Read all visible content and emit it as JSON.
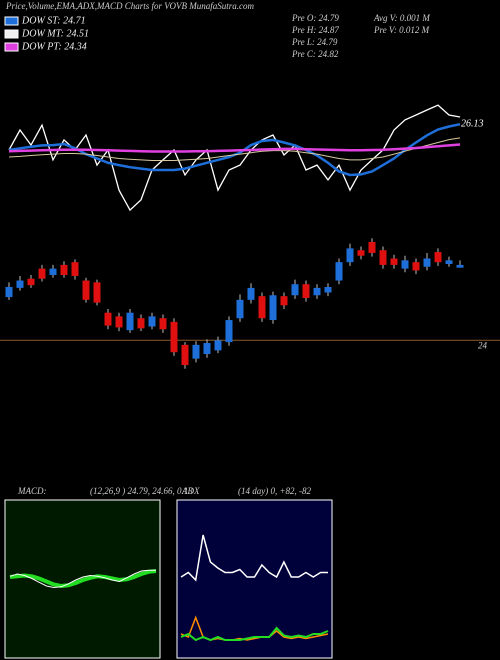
{
  "header": {
    "title": "Price,Volume,EMA,ADX,MACD Charts for VOVB MunafaSutra.com",
    "legend": [
      {
        "label": "DOW ST: 24.71",
        "color": "#1e6fd9"
      },
      {
        "label": "DOW MT: 24.51",
        "color": "#f0f0f0"
      },
      {
        "label": "DOW PT: 24.34",
        "color": "#e040e0"
      }
    ],
    "stats": [
      "Pre O: 24.79",
      "Avg V: 0.001 M",
      "Pre H: 24.87",
      "Pre V: 0.012 M",
      "Pre L: 24.79",
      "Pre C: 24.82"
    ]
  },
  "chart_data": [
    {
      "type": "line",
      "ylim": [
        23,
        28
      ],
      "series": [
        {
          "color": "#ffffff",
          "values": [
            25.24,
            25.93,
            25.41,
            26.1,
            24.9,
            25.59,
            25.24,
            25.76,
            24.72,
            25.24,
            23.86,
            23.17,
            23.52,
            24.55,
            24.9,
            25.24,
            24.38,
            24.9,
            25.24,
            23.86,
            24.55,
            24.72,
            25.24,
            25.59,
            25.76,
            25.07,
            25.41,
            24.55,
            24.72,
            24.21,
            24.72,
            23.86,
            24.55,
            24.9,
            25.24,
            25.93,
            26.28,
            26.45,
            26.62,
            26.79,
            26.45,
            26.38
          ]
        },
        {
          "color": "#1e6fd9",
          "values": [
            25.24,
            25.3,
            25.35,
            25.4,
            25.41,
            25.45,
            25.3,
            25.1,
            24.95,
            24.8,
            24.72,
            24.65,
            24.6,
            24.55,
            24.55,
            24.55,
            24.6,
            24.7,
            24.8,
            24.9,
            25.0,
            25.15,
            25.41,
            25.55,
            25.59,
            25.5,
            25.4,
            25.24,
            25.05,
            24.8,
            24.5,
            24.38,
            24.4,
            24.5,
            24.72,
            24.95,
            25.24,
            25.5,
            25.75,
            25.95,
            26.05,
            26.13
          ]
        },
        {
          "color": "#d8c8a0",
          "values": [
            25.0,
            25.02,
            25.05,
            25.08,
            25.1,
            25.12,
            25.12,
            25.1,
            25.05,
            25.0,
            24.95,
            24.92,
            24.9,
            24.88,
            24.88,
            24.88,
            24.9,
            24.92,
            24.95,
            25.0,
            25.05,
            25.1,
            25.15,
            25.2,
            25.22,
            25.22,
            25.2,
            25.15,
            25.1,
            25.02,
            24.95,
            24.9,
            24.9,
            24.95,
            25.0,
            25.1,
            25.2,
            25.3,
            25.4,
            25.5,
            25.6,
            25.66
          ]
        },
        {
          "color": "#e040e0",
          "values": [
            25.2,
            25.21,
            25.22,
            25.23,
            25.24,
            25.25,
            25.25,
            25.25,
            25.24,
            25.23,
            25.22,
            25.21,
            25.2,
            25.19,
            25.19,
            25.19,
            25.19,
            25.2,
            25.2,
            25.21,
            25.22,
            25.23,
            25.24,
            25.26,
            25.27,
            25.28,
            25.28,
            25.27,
            25.26,
            25.25,
            25.24,
            25.23,
            25.23,
            25.24,
            25.25,
            25.27,
            25.29,
            25.31,
            25.34,
            25.37,
            25.4,
            25.43
          ]
        }
      ]
    },
    {
      "type": "candlestick",
      "ylim": [
        23.35,
        25.2
      ],
      "yticks": [
        24
      ],
      "up_color": "#1e6fd9",
      "down_color": "#e01010",
      "open": [
        24.47,
        24.57,
        24.67,
        24.78,
        24.71,
        24.82,
        24.85,
        24.65,
        24.63,
        24.3,
        24.26,
        24.11,
        24.24,
        24.15,
        24.24,
        24.2,
        23.95,
        23.8,
        23.85,
        23.89,
        23.98,
        24.24,
        24.44,
        24.48,
        24.22,
        24.48,
        24.49,
        24.61,
        24.49,
        24.52,
        24.65,
        24.85,
        24.98,
        25.07,
        24.98,
        24.89,
        24.78,
        24.85,
        24.8,
        24.96,
        24.83,
        24.79
      ],
      "high": [
        24.63,
        24.7,
        24.71,
        24.82,
        24.82,
        24.86,
        24.88,
        24.68,
        24.66,
        24.34,
        24.3,
        24.34,
        24.28,
        24.3,
        24.28,
        24.24,
        23.98,
        23.99,
        24.01,
        24.04,
        24.26,
        24.5,
        24.62,
        24.52,
        24.53,
        24.52,
        24.66,
        24.65,
        24.61,
        24.62,
        24.89,
        25.05,
        25.02,
        25.11,
        25.02,
        24.93,
        24.92,
        24.89,
        24.95,
        25.0,
        24.91,
        24.87
      ],
      "low": [
        24.44,
        24.54,
        24.57,
        24.64,
        24.68,
        24.68,
        24.66,
        24.41,
        24.38,
        24.12,
        24.1,
        24.08,
        24.1,
        24.12,
        24.08,
        23.83,
        23.69,
        23.76,
        23.81,
        23.86,
        23.94,
        24.2,
        24.4,
        24.2,
        24.18,
        24.34,
        24.45,
        24.42,
        24.45,
        24.48,
        24.61,
        24.81,
        24.88,
        24.91,
        24.78,
        24.78,
        24.74,
        24.72,
        24.76,
        24.81,
        24.8,
        24.79
      ],
      "close": [
        24.58,
        24.65,
        24.6,
        24.67,
        24.78,
        24.71,
        24.7,
        24.44,
        24.41,
        24.16,
        24.14,
        24.3,
        24.13,
        24.26,
        24.12,
        23.87,
        23.73,
        23.95,
        23.97,
        24.0,
        24.22,
        24.44,
        24.57,
        24.24,
        24.49,
        24.38,
        24.61,
        24.46,
        24.57,
        24.58,
        24.85,
        25.0,
        24.92,
        24.95,
        24.82,
        24.82,
        24.87,
        24.76,
        24.89,
        24.85,
        24.87,
        24.82
      ]
    },
    {
      "type": "line",
      "title": "MACD:",
      "subtitle": "(12,26,9 ) 24.79, 24.66, 0.13",
      "ylim": [
        -1,
        1
      ],
      "series": [
        {
          "color": "#22dd22",
          "values": [
            0.04,
            0.05,
            0.06,
            0.05,
            0.02,
            -0.02,
            -0.06,
            -0.08,
            -0.07,
            -0.04,
            0.0,
            0.03,
            0.05,
            0.04,
            0.02,
            0.0,
            0.01,
            0.04,
            0.08,
            0.11,
            0.12
          ]
        },
        {
          "color": "#ffffff",
          "values": [
            0.05,
            0.08,
            0.06,
            0.02,
            -0.03,
            -0.08,
            -0.1,
            -0.09,
            -0.05,
            0.0,
            0.04,
            0.06,
            0.05,
            0.03,
            0.0,
            -0.02,
            0.03,
            0.08,
            0.12,
            0.13,
            0.13
          ]
        }
      ]
    },
    {
      "type": "line",
      "title": "ADX",
      "subtitle": "(14 day) 0, +82, -82",
      "ylim": [
        0,
        100
      ],
      "series": [
        {
          "color": "#ffffff",
          "values": [
            52,
            55,
            50,
            80,
            62,
            58,
            55,
            55,
            57,
            52,
            52,
            60,
            55,
            52,
            62,
            52,
            52,
            55,
            52,
            55,
            55
          ]
        },
        {
          "color": "#ff8c00",
          "values": [
            14,
            12,
            25,
            12,
            10,
            11,
            10,
            10,
            11,
            10,
            11,
            12,
            12,
            16,
            12,
            11,
            12,
            11,
            12,
            13,
            14
          ]
        },
        {
          "color": "#22dd22",
          "values": [
            12,
            14,
            10,
            12,
            10,
            12,
            10,
            10,
            10,
            11,
            12,
            12,
            12,
            18,
            13,
            12,
            13,
            12,
            14,
            14,
            16
          ]
        }
      ]
    }
  ]
}
